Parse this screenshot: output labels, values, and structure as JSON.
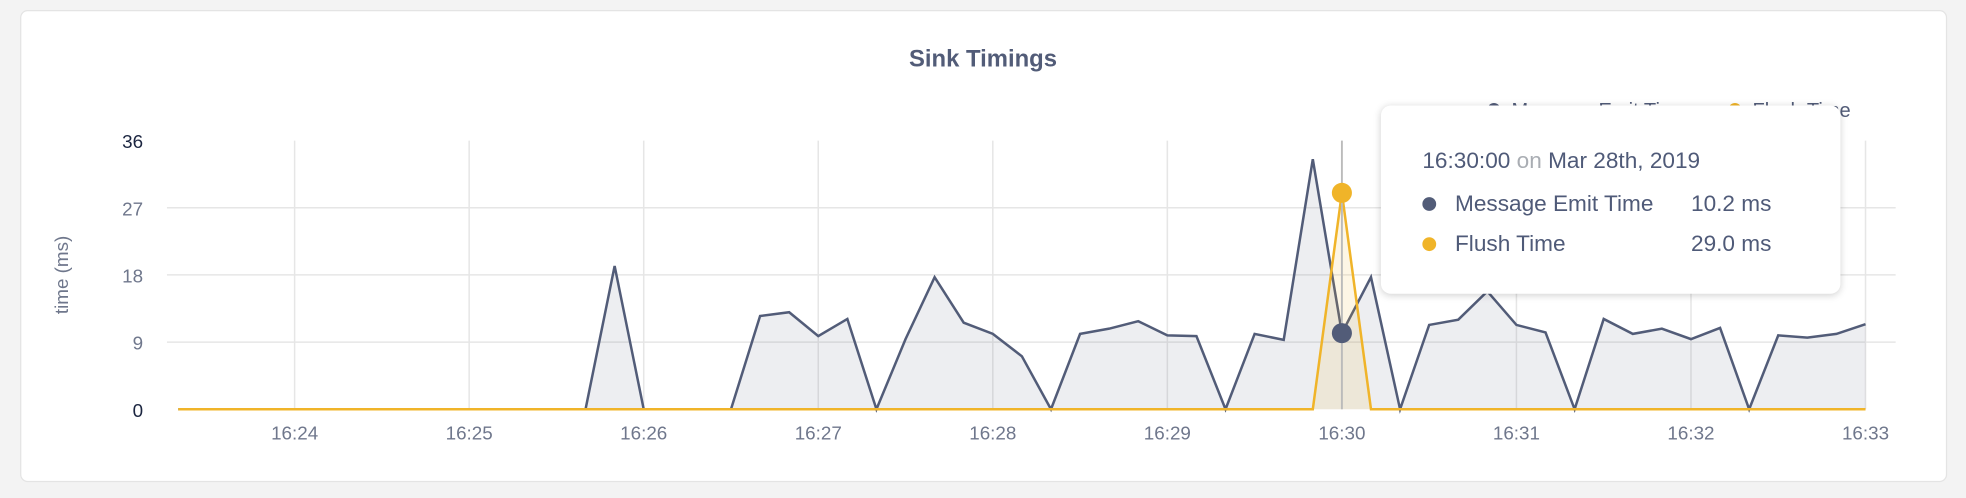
{
  "chart_data": {
    "type": "area",
    "title": "Sink Timings",
    "ylabel": "time (ms)",
    "xlabel": "",
    "ylim": [
      0,
      36
    ],
    "yticks": [
      "0",
      "9",
      "18",
      "27",
      "36"
    ],
    "xticks": [
      "16:24",
      "16:25",
      "16:26",
      "16:27",
      "16:28",
      "16:29",
      "16:30",
      "16:31",
      "16:32",
      "16:33"
    ],
    "grid": true,
    "legend_position": "top-right",
    "x": [
      "16:23:20",
      "16:23:30",
      "16:23:40",
      "16:23:50",
      "16:24:00",
      "16:24:10",
      "16:24:20",
      "16:24:30",
      "16:24:40",
      "16:24:50",
      "16:25:00",
      "16:25:10",
      "16:25:20",
      "16:25:30",
      "16:25:40",
      "16:25:50",
      "16:26:00",
      "16:26:10",
      "16:26:20",
      "16:26:30",
      "16:26:40",
      "16:26:50",
      "16:27:00",
      "16:27:10",
      "16:27:20",
      "16:27:30",
      "16:27:40",
      "16:27:50",
      "16:28:00",
      "16:28:10",
      "16:28:20",
      "16:28:30",
      "16:28:40",
      "16:28:50",
      "16:29:00",
      "16:29:10",
      "16:29:20",
      "16:29:30",
      "16:29:40",
      "16:29:50",
      "16:30:00",
      "16:30:10",
      "16:30:20",
      "16:30:30",
      "16:30:40",
      "16:30:50",
      "16:31:00",
      "16:31:10",
      "16:31:20",
      "16:31:30",
      "16:31:40",
      "16:31:50",
      "16:32:00",
      "16:32:10",
      "16:32:20",
      "16:32:30",
      "16:32:40",
      "16:32:50",
      "16:33:00"
    ],
    "series": [
      {
        "name": "Message Emit Time",
        "color": "#525c78",
        "values": [
          0,
          0,
          0,
          0,
          0,
          0,
          0,
          0,
          0,
          0,
          0,
          0,
          0,
          0,
          0,
          19.2,
          0,
          0,
          0,
          0,
          12.5,
          13.0,
          9.8,
          12.1,
          0,
          9.4,
          17.7,
          11.6,
          10.1,
          7.1,
          0,
          10.1,
          10.8,
          11.8,
          9.9,
          9.8,
          0,
          10.1,
          9.3,
          33.5,
          10.2,
          17.7,
          0,
          11.3,
          12.0,
          15.8,
          11.3,
          10.3,
          0,
          12.1,
          10.1,
          10.8,
          9.4,
          10.9,
          0,
          9.9,
          9.6,
          10.1,
          11.4
        ]
      },
      {
        "name": "Flush Time",
        "color": "#f0b429",
        "values": [
          0,
          0,
          0,
          0,
          0,
          0,
          0,
          0,
          0,
          0,
          0,
          0,
          0,
          0,
          0,
          0,
          0,
          0,
          0,
          0,
          0,
          0,
          0,
          0,
          0,
          0,
          0,
          0,
          0,
          0,
          0,
          0,
          0,
          0,
          0,
          0,
          0,
          0,
          0,
          0,
          29.0,
          0,
          0,
          0,
          0,
          0,
          0,
          0,
          0,
          0,
          0,
          0,
          0,
          0,
          0,
          0,
          0,
          0,
          0
        ]
      }
    ],
    "hover": {
      "x": "16:30:00"
    }
  },
  "tooltip": {
    "time": "16:30:00",
    "on": "on",
    "date": "Mar 28th, 2019",
    "rows": [
      {
        "label": "Message Emit Time",
        "value": "10.2 ms",
        "color": "#525c78"
      },
      {
        "label": "Flush Time",
        "value": "29.0 ms",
        "color": "#f0b429"
      }
    ]
  }
}
